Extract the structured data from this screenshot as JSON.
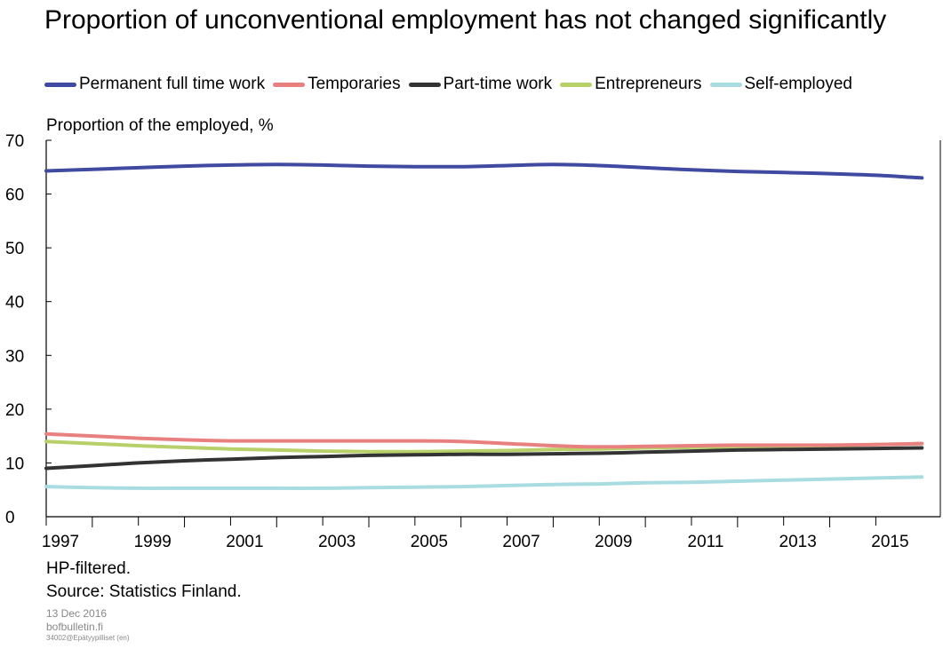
{
  "chart_data": {
    "type": "line",
    "title": "Proportion of unconventional employment has not changed significantly",
    "ylabel": "Proportion of the employed, %",
    "xlabel": "",
    "ylim": [
      0,
      70
    ],
    "yticks": [
      0,
      10,
      20,
      30,
      40,
      50,
      60,
      70
    ],
    "xlim": [
      1997,
      2016.4
    ],
    "xticks": [
      1997,
      1999,
      2001,
      2003,
      2005,
      2007,
      2009,
      2011,
      2013,
      2015
    ],
    "grid": false,
    "legend_position": "top",
    "x": [
      1997,
      1998,
      1999,
      2000,
      2001,
      2002,
      2003,
      2004,
      2005,
      2006,
      2007,
      2008,
      2009,
      2010,
      2011,
      2012,
      2013,
      2014,
      2015,
      2016
    ],
    "series": [
      {
        "name": "Permanent full time work",
        "color": "#3f4aa0",
        "values": [
          64.3,
          64.6,
          64.9,
          65.2,
          65.4,
          65.5,
          65.4,
          65.2,
          65.1,
          65.1,
          65.3,
          65.5,
          65.3,
          64.9,
          64.5,
          64.2,
          64.0,
          63.8,
          63.5,
          63.0
        ]
      },
      {
        "name": "Temporaries",
        "color": "#e98080",
        "values": [
          15.4,
          15.0,
          14.6,
          14.3,
          14.1,
          14.1,
          14.1,
          14.1,
          14.1,
          14.0,
          13.6,
          13.2,
          13.0,
          13.1,
          13.2,
          13.3,
          13.3,
          13.3,
          13.4,
          13.6
        ]
      },
      {
        "name": "Part-time work",
        "color": "#333333",
        "values": [
          9.0,
          9.5,
          10.0,
          10.4,
          10.7,
          11.0,
          11.2,
          11.4,
          11.5,
          11.6,
          11.6,
          11.7,
          11.8,
          12.0,
          12.2,
          12.4,
          12.5,
          12.6,
          12.7,
          12.8
        ]
      },
      {
        "name": "Entrepreneurs",
        "color": "#b8d06a",
        "values": [
          14.0,
          13.6,
          13.2,
          12.9,
          12.6,
          12.4,
          12.2,
          12.1,
          12.1,
          12.2,
          12.3,
          12.5,
          12.6,
          12.8,
          12.9,
          13.0,
          13.1,
          13.2,
          13.4,
          13.6
        ]
      },
      {
        "name": "Self-employed",
        "color": "#a9dce0",
        "values": [
          5.6,
          5.4,
          5.3,
          5.3,
          5.3,
          5.3,
          5.3,
          5.4,
          5.5,
          5.6,
          5.8,
          6.0,
          6.1,
          6.3,
          6.4,
          6.6,
          6.8,
          7.0,
          7.2,
          7.4
        ]
      }
    ]
  },
  "footer": {
    "note": "HP-filtered.",
    "source": "Source: Statistics Finland.",
    "date": "13 Dec 2016",
    "site": "bofbulletin.fi",
    "code": "34002@Epätyypilliset (en)"
  }
}
